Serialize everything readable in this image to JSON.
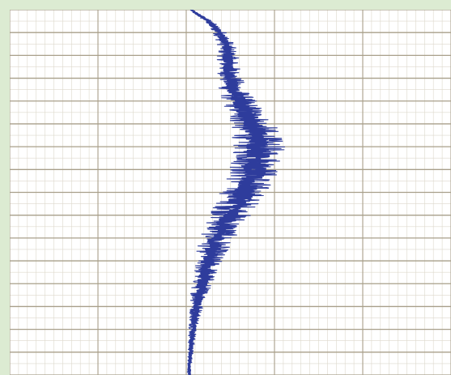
{
  "colors": {
    "frame": "#dcebd2",
    "paper": "#ffffff",
    "major_grid": "#a89f8a",
    "minor_grid": "#ddd8cc",
    "trace": "#2e3c9c"
  },
  "chart_data": {
    "type": "line",
    "title": "",
    "xlabel": "",
    "ylabel": "",
    "orientation": "vertical-strip-chart",
    "grid": true,
    "x_major_divisions": 5,
    "y_major_divisions": 16,
    "xlim": [
      0,
      5
    ],
    "ylim": [
      0,
      16
    ],
    "series": [
      {
        "center": [
          {
            "y": 0.0,
            "x": 2.05
          },
          {
            "y": 0.5,
            "x": 2.25
          },
          {
            "y": 1.0,
            "x": 2.38
          },
          {
            "y": 1.5,
            "x": 2.45
          },
          {
            "y": 2.0,
            "x": 2.47
          },
          {
            "y": 2.5,
            "x": 2.48
          },
          {
            "y": 3.0,
            "x": 2.5
          },
          {
            "y": 3.5,
            "x": 2.53
          },
          {
            "y": 4.0,
            "x": 2.6
          },
          {
            "y": 4.5,
            "x": 2.68
          },
          {
            "y": 5.0,
            "x": 2.75
          },
          {
            "y": 5.5,
            "x": 2.8
          },
          {
            "y": 6.0,
            "x": 2.82
          },
          {
            "y": 6.5,
            "x": 2.82
          },
          {
            "y": 7.0,
            "x": 2.78
          },
          {
            "y": 7.5,
            "x": 2.72
          },
          {
            "y": 8.0,
            "x": 2.65
          },
          {
            "y": 8.5,
            "x": 2.58
          },
          {
            "y": 9.0,
            "x": 2.5
          },
          {
            "y": 9.5,
            "x": 2.42
          },
          {
            "y": 10.0,
            "x": 2.35
          },
          {
            "y": 10.5,
            "x": 2.3
          },
          {
            "y": 11.0,
            "x": 2.25
          },
          {
            "y": 11.5,
            "x": 2.22
          },
          {
            "y": 12.0,
            "x": 2.18
          },
          {
            "y": 12.5,
            "x": 2.15
          },
          {
            "y": 13.0,
            "x": 2.12
          },
          {
            "y": 13.5,
            "x": 2.1
          },
          {
            "y": 14.0,
            "x": 2.08
          },
          {
            "y": 14.5,
            "x": 2.06
          },
          {
            "y": 15.0,
            "x": 2.05
          },
          {
            "y": 15.5,
            "x": 2.04
          },
          {
            "y": 16.0,
            "x": 2.03
          }
        ],
        "amplitude": [
          {
            "y": 0.0,
            "a": 0.02
          },
          {
            "y": 1.0,
            "a": 0.08
          },
          {
            "y": 2.0,
            "a": 0.12
          },
          {
            "y": 3.0,
            "a": 0.14
          },
          {
            "y": 4.0,
            "a": 0.2
          },
          {
            "y": 5.0,
            "a": 0.26
          },
          {
            "y": 6.0,
            "a": 0.3
          },
          {
            "y": 7.0,
            "a": 0.3
          },
          {
            "y": 8.0,
            "a": 0.27
          },
          {
            "y": 9.0,
            "a": 0.24
          },
          {
            "y": 10.0,
            "a": 0.2
          },
          {
            "y": 11.0,
            "a": 0.16
          },
          {
            "y": 12.0,
            "a": 0.12
          },
          {
            "y": 13.0,
            "a": 0.08
          },
          {
            "y": 14.0,
            "a": 0.05
          },
          {
            "y": 15.0,
            "a": 0.03
          },
          {
            "y": 16.0,
            "a": 0.02
          }
        ]
      }
    ]
  }
}
